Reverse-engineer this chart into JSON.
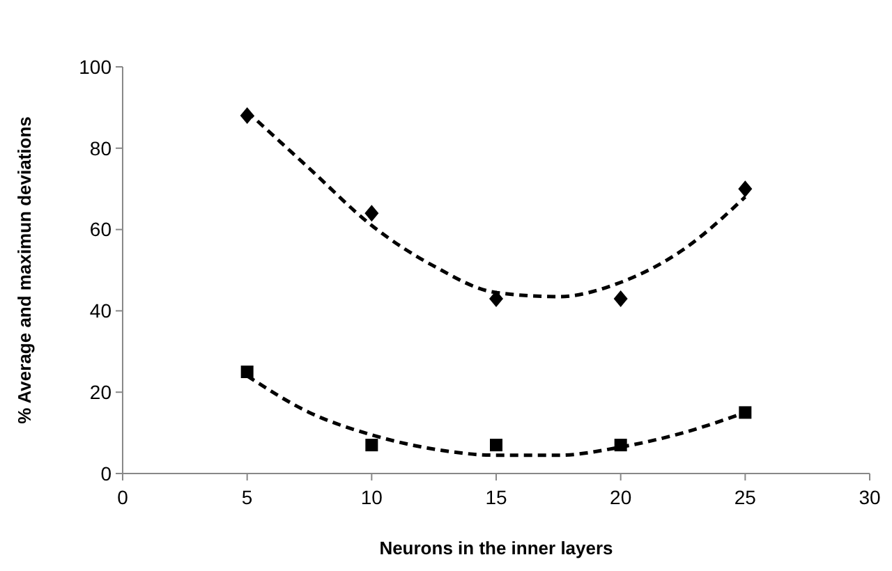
{
  "chart_data": {
    "type": "scatter",
    "xlabel": "Neurons in the inner layers",
    "ylabel": "% Average and maximun deviations",
    "x": [
      5,
      10,
      15,
      20,
      25
    ],
    "series": [
      {
        "color": "#000000",
        "marker": "diamond",
        "values": [
          88,
          64,
          43,
          43,
          70
        ]
      },
      {
        "color": "#000000",
        "marker": "square",
        "values": [
          25,
          7,
          7,
          7,
          15
        ]
      },
      {
        "type": "line",
        "color": "#000000",
        "line_style": "dashed",
        "marker": "none",
        "x": [
          5,
          7.5,
          10,
          12.5,
          15,
          17.5,
          20,
          22.5,
          25
        ],
        "values": [
          89,
          75,
          61,
          51,
          44.5,
          43.5,
          47,
          55,
          68
        ]
      },
      {
        "type": "line",
        "color": "#000000",
        "line_style": "dashed",
        "marker": "none",
        "x": [
          5,
          7.5,
          10,
          12.5,
          15,
          17.5,
          20,
          22.5,
          25
        ],
        "values": [
          24,
          15,
          9.5,
          6,
          4.5,
          4.5,
          6.5,
          10,
          15
        ]
      }
    ],
    "xlim": [
      0,
      30
    ],
    "xticks": [
      0,
      5,
      10,
      15,
      20,
      25,
      30
    ],
    "ylim": [
      0,
      100
    ],
    "yticks": [
      0,
      20,
      40,
      60,
      80,
      100
    ],
    "grid": false
  }
}
